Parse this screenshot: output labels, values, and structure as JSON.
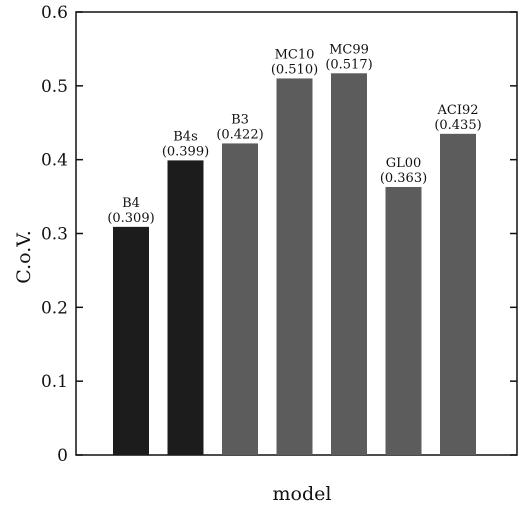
{
  "chart_data": {
    "type": "bar",
    "categories": [
      "B4",
      "B4s",
      "B3",
      "MC10",
      "MC99",
      "GL00",
      "ACI92"
    ],
    "values": [
      0.309,
      0.399,
      0.422,
      0.51,
      0.517,
      0.363,
      0.435
    ],
    "value_labels": [
      "(0.309)",
      "(0.399)",
      "(0.422)",
      "(0.510)",
      "(0.517)",
      "(0.363)",
      "(0.435)"
    ],
    "title": "",
    "xlabel": "model",
    "ylabel": "C.o.V.",
    "ylim": [
      0,
      0.6
    ],
    "yticks": [
      "0",
      "0.1",
      "0.2",
      "0.3",
      "0.4",
      "0.5",
      "0.6"
    ],
    "grid": false,
    "bar_colors": [
      "#1c1c1c",
      "#1c1c1c",
      "#5c5c5c",
      "#5c5c5c",
      "#5c5c5c",
      "#5c5c5c",
      "#5c5c5c"
    ],
    "axis_color": "#111111"
  }
}
